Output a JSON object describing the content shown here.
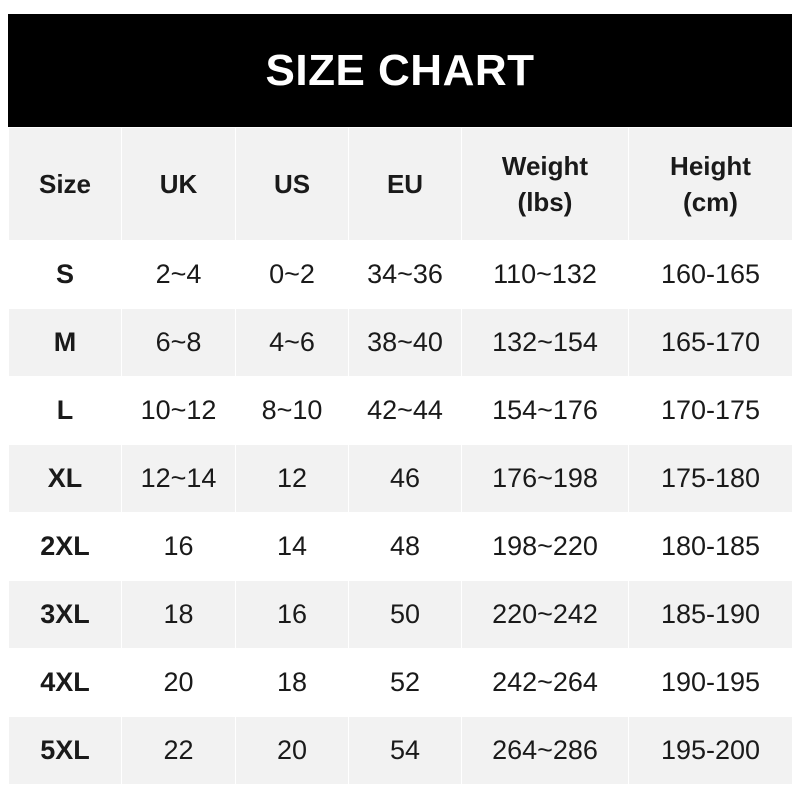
{
  "title": "SIZE CHART",
  "colors": {
    "header_bg": "#000000",
    "header_text": "#ffffff",
    "stripe": "#f2f2f2"
  },
  "columns": [
    "Size",
    "UK",
    "US",
    "EU",
    "Weight\n(lbs)",
    "Height\n(cm)"
  ],
  "rows": [
    [
      "S",
      "2~4",
      "0~2",
      "34~36",
      "110~132",
      "160-165"
    ],
    [
      "M",
      "6~8",
      "4~6",
      "38~40",
      "132~154",
      "165-170"
    ],
    [
      "L",
      "10~12",
      "8~10",
      "42~44",
      "154~176",
      "170-175"
    ],
    [
      "XL",
      "12~14",
      "12",
      "46",
      "176~198",
      "175-180"
    ],
    [
      "2XL",
      "16",
      "14",
      "48",
      "198~220",
      "180-185"
    ],
    [
      "3XL",
      "18",
      "16",
      "50",
      "220~242",
      "185-190"
    ],
    [
      "4XL",
      "20",
      "18",
      "52",
      "242~264",
      "190-195"
    ],
    [
      "5XL",
      "22",
      "20",
      "54",
      "264~286",
      "195-200"
    ]
  ]
}
